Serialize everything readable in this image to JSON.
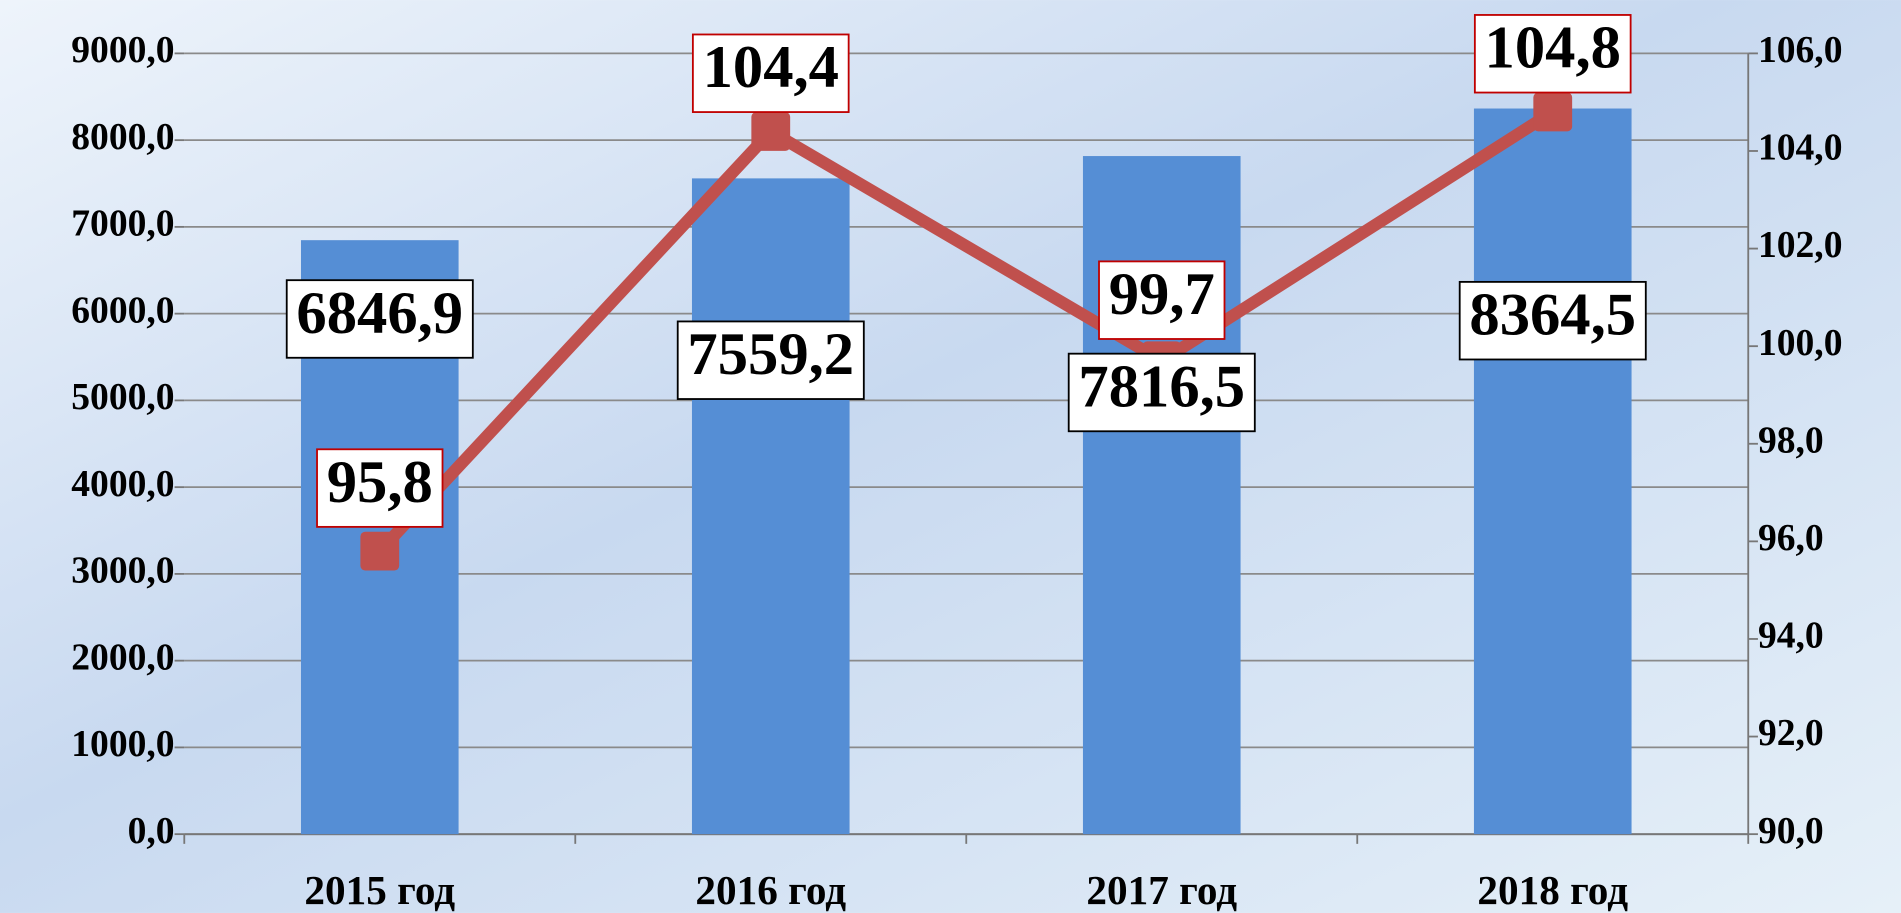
{
  "chart_data": {
    "type": "bar-line",
    "categories": [
      "2015 год",
      "2016 год",
      "2017 год",
      "2018 год"
    ],
    "series": [
      {
        "type": "bar",
        "color": "#558ed5",
        "values": [
          6846.9,
          7559.2,
          7816.5,
          8364.5
        ],
        "value_labels": [
          "6846,9",
          "7559,2",
          "7816,5",
          "8364,5"
        ]
      },
      {
        "type": "line",
        "axis": "y2",
        "color": "#c0504d",
        "values": [
          95.8,
          104.4,
          99.7,
          104.8
        ],
        "value_labels": [
          "95,8",
          "104,4",
          "99,7",
          "104,8"
        ]
      }
    ],
    "ylim": [
      0,
      9000
    ],
    "yticks": [
      {
        "value": 0,
        "label": "0,0"
      },
      {
        "value": 1000,
        "label": "1000,0"
      },
      {
        "value": 2000,
        "label": "2000,0"
      },
      {
        "value": 3000,
        "label": "3000,0"
      },
      {
        "value": 4000,
        "label": "4000,0"
      },
      {
        "value": 5000,
        "label": "5000,0"
      },
      {
        "value": 6000,
        "label": "6000,0"
      },
      {
        "value": 7000,
        "label": "7000,0"
      },
      {
        "value": 8000,
        "label": "8000,0"
      },
      {
        "value": 9000,
        "label": "9000,0"
      }
    ],
    "y2lim": [
      90,
      106
    ],
    "y2ticks": [
      {
        "value": 90,
        "label": "90,0"
      },
      {
        "value": 92,
        "label": "92,0"
      },
      {
        "value": 94,
        "label": "94,0"
      },
      {
        "value": 96,
        "label": "96,0"
      },
      {
        "value": 98,
        "label": "98,0"
      },
      {
        "value": 100,
        "label": "100,0"
      },
      {
        "value": 102,
        "label": "102,0"
      },
      {
        "value": 104,
        "label": "104,0"
      },
      {
        "value": 106,
        "label": "106,0"
      }
    ],
    "grid": true
  }
}
